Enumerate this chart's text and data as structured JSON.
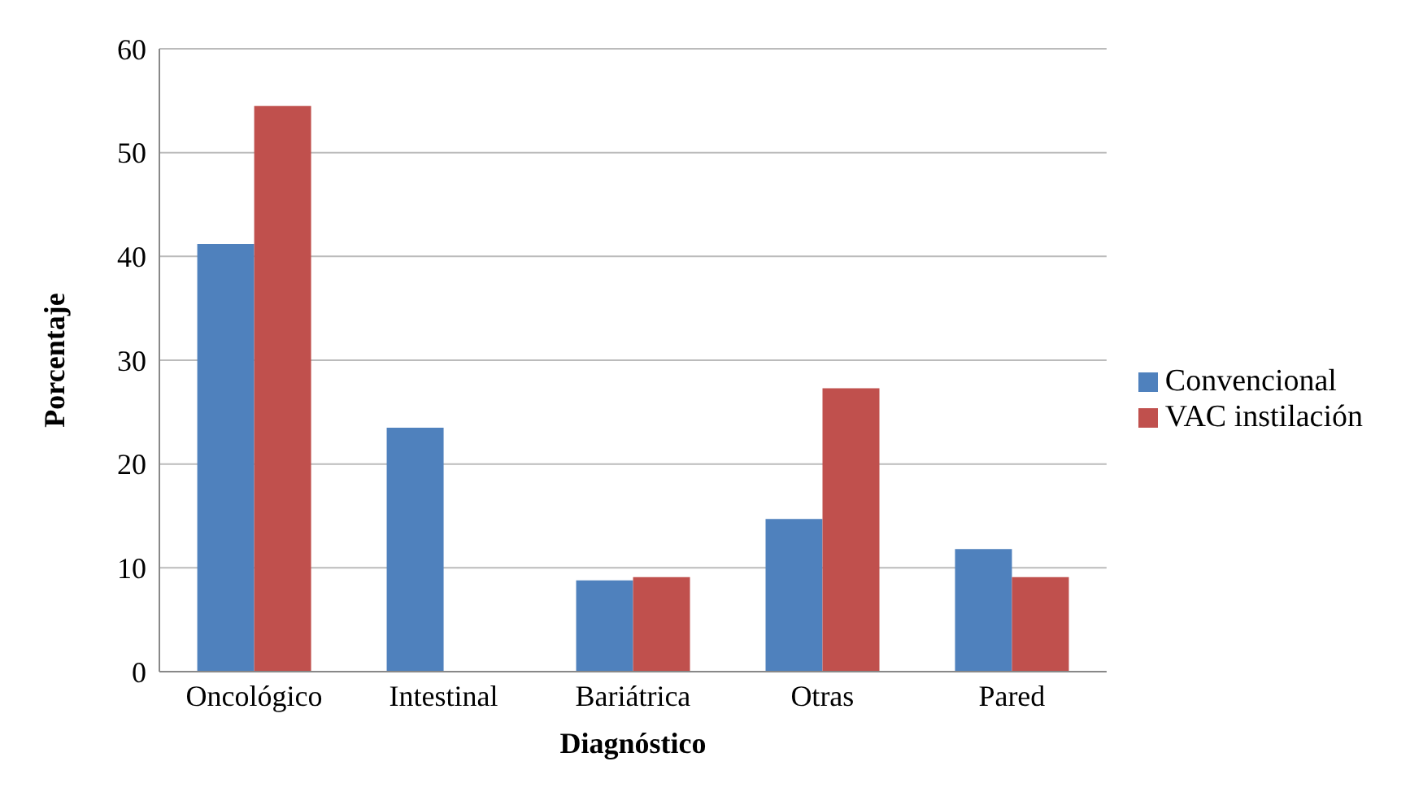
{
  "chart_data": {
    "type": "bar",
    "xlabel": "Diagnóstico",
    "ylabel": "Porcentaje",
    "categories": [
      "Oncológico",
      "Intestinal",
      "Bariátrica",
      "Otras",
      "Pared"
    ],
    "series": [
      {
        "name": "Convencional",
        "color": "#4f81bd",
        "values": [
          41.2,
          23.5,
          8.8,
          14.7,
          11.8
        ]
      },
      {
        "name": "VAC instilación",
        "color": "#c0504d",
        "values": [
          54.5,
          0,
          9.1,
          27.3,
          9.1
        ]
      }
    ],
    "ylim": [
      0,
      60
    ],
    "yticks": [
      0,
      10,
      20,
      30,
      40,
      50,
      60
    ],
    "grid": "y",
    "legend": "right"
  }
}
